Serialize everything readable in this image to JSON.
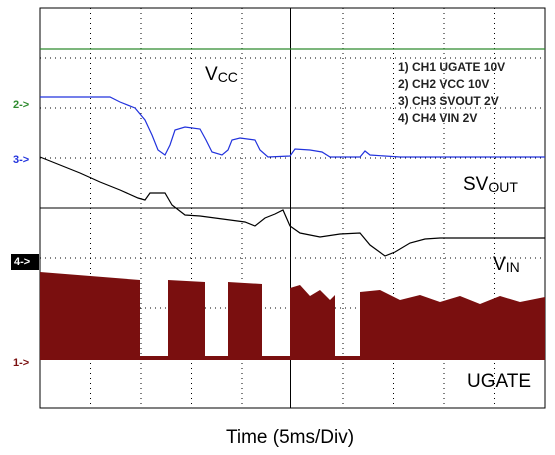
{
  "chart_data": {
    "type": "scope",
    "x_label": "Time  (5ms/Div)",
    "channel_markers": [
      "2->",
      "3->",
      "4->",
      "1->"
    ],
    "legend": [
      "1) CH1 UGATE 10V",
      "2) CH2 VCC 10V",
      "3) CH3 SVOUT 2V",
      "4) CH4 VIN 2V"
    ],
    "trace_labels": [
      {
        "main": "V",
        "sub": "CC"
      },
      {
        "main": "SV",
        "sub": "OUT"
      },
      {
        "main": "V",
        "sub": "IN"
      },
      {
        "main": "UGATE"
      }
    ]
  }
}
